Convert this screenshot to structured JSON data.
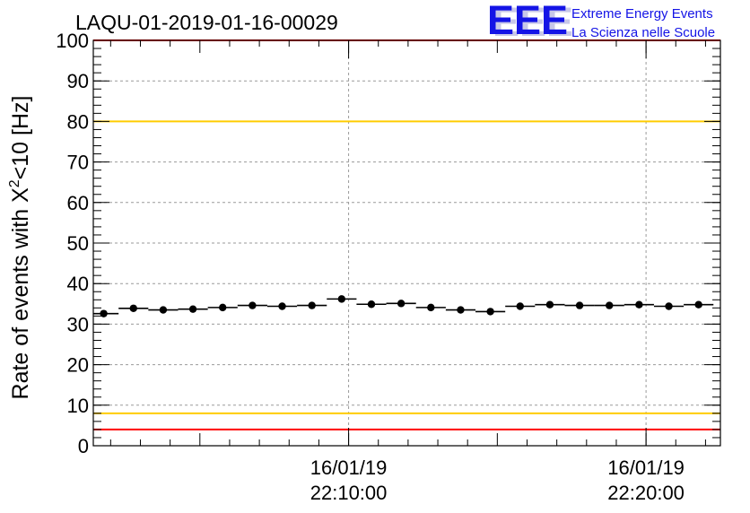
{
  "chart_data": {
    "type": "scatter",
    "title": "LAQU-01-2019-01-16-00029",
    "ylabel": {
      "prefix": "Rate of events with X",
      "sup": "2",
      "suffix": "<10 [Hz]"
    },
    "ylim": [
      0,
      100
    ],
    "y_ticks": [
      0,
      10,
      20,
      30,
      40,
      50,
      60,
      70,
      80,
      90,
      100
    ],
    "x_range": [
      "2019-01-16 22:01:25",
      "2019-01-16 22:22:30"
    ],
    "x_ticks": [
      {
        "time": "2019-01-16 22:10:00",
        "date_label": "16/01/19",
        "time_label": "22:10:00"
      },
      {
        "time": "2019-01-16 22:20:00",
        "date_label": "16/01/19",
        "time_label": "22:20:00"
      }
    ],
    "grid": true,
    "bin_seconds": 60,
    "points": [
      {
        "x": "2019-01-16 22:01:46",
        "y": 32.6
      },
      {
        "x": "2019-01-16 22:02:46",
        "y": 33.9
      },
      {
        "x": "2019-01-16 22:03:46",
        "y": 33.5
      },
      {
        "x": "2019-01-16 22:04:46",
        "y": 33.7
      },
      {
        "x": "2019-01-16 22:05:46",
        "y": 34.1
      },
      {
        "x": "2019-01-16 22:06:46",
        "y": 34.6
      },
      {
        "x": "2019-01-16 22:07:46",
        "y": 34.4
      },
      {
        "x": "2019-01-16 22:08:46",
        "y": 34.6
      },
      {
        "x": "2019-01-16 22:09:46",
        "y": 36.2
      },
      {
        "x": "2019-01-16 22:10:46",
        "y": 34.9
      },
      {
        "x": "2019-01-16 22:11:46",
        "y": 35.1
      },
      {
        "x": "2019-01-16 22:12:46",
        "y": 34.1
      },
      {
        "x": "2019-01-16 22:13:46",
        "y": 33.5
      },
      {
        "x": "2019-01-16 22:14:46",
        "y": 33.1
      },
      {
        "x": "2019-01-16 22:15:46",
        "y": 34.4
      },
      {
        "x": "2019-01-16 22:16:46",
        "y": 34.8
      },
      {
        "x": "2019-01-16 22:17:46",
        "y": 34.6
      },
      {
        "x": "2019-01-16 22:18:46",
        "y": 34.6
      },
      {
        "x": "2019-01-16 22:19:46",
        "y": 34.8
      },
      {
        "x": "2019-01-16 22:20:46",
        "y": 34.4
      },
      {
        "x": "2019-01-16 22:21:46",
        "y": 34.8
      }
    ],
    "reference_lines": [
      {
        "y": 100,
        "color": "#ff0000"
      },
      {
        "y": 80,
        "color": "#ffcc00"
      },
      {
        "y": 8,
        "color": "#ffcc00"
      },
      {
        "y": 4,
        "color": "#ff0000"
      }
    ]
  },
  "logo": {
    "text": "EEE",
    "line1": "Extreme Energy Events",
    "line2": "La Scienza nelle Scuole",
    "color": "#1414e6"
  }
}
